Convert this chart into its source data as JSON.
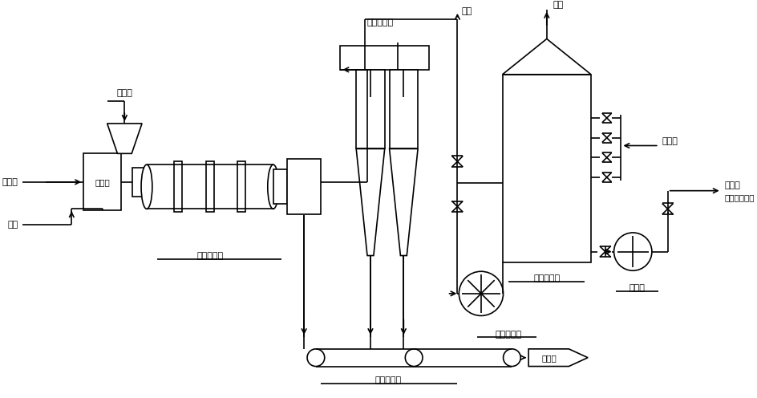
{
  "bg_color": "#ffffff",
  "line_color": "#000000",
  "labels": {
    "shi_wu_liao": "湿物料",
    "tian_ran_qi": "天然气",
    "kong_qi": "空气",
    "ran_shao_lu": "燃烧炉",
    "zhuan_tong": "转筒干燥机",
    "xuan_feng_chu_chen": "旋风除尘器",
    "pai_kong1": "排空",
    "pai_kong2": "排空",
    "shui_yu_chu_chen": "水浴除尘器",
    "xuan_feng_yin_feng": "旋风引风机",
    "pen_lin_shui": "喷淋水",
    "hui_shou_ye": "回收液",
    "qu_cu_jia": "去粗钾浓密机",
    "zha_jiang_beng": "渣浆泵",
    "cheng_pin": "成品皮带机",
    "qu_bao_zhuang": "去包装"
  },
  "figsize": [
    9.45,
    4.96
  ],
  "dpi": 100
}
